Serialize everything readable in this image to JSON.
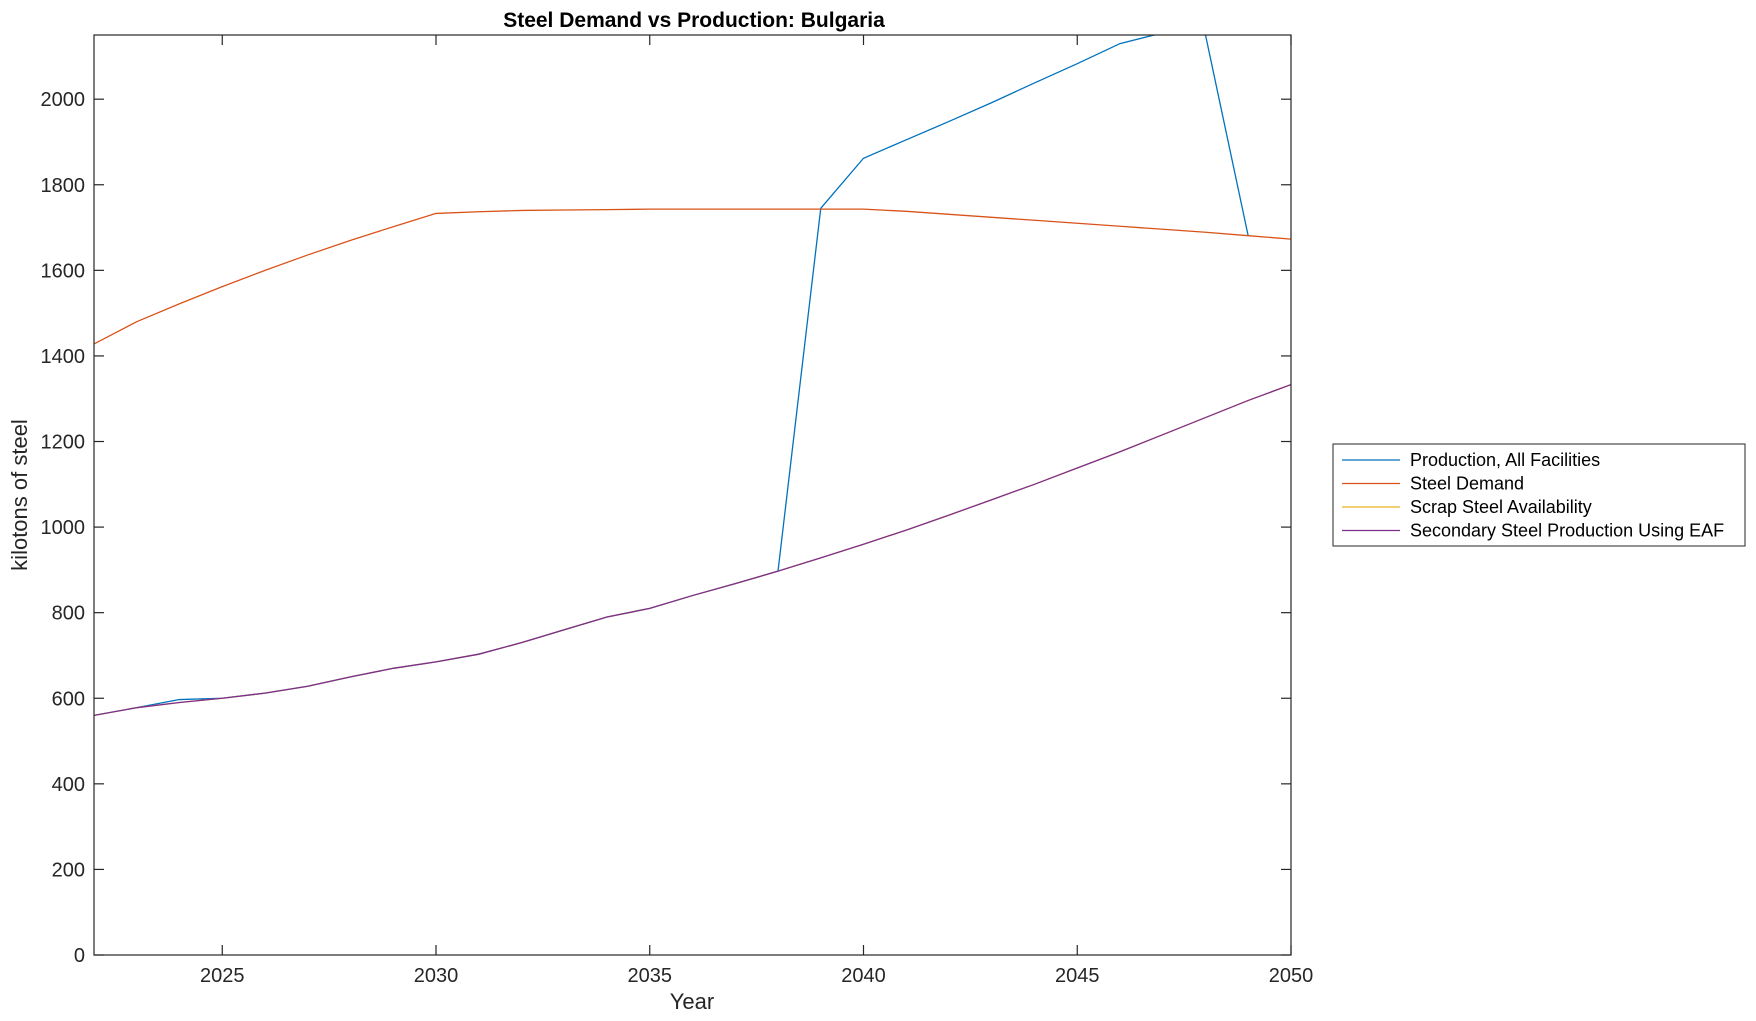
{
  "chart_data": {
    "type": "line",
    "title": "Steel Demand vs Production: Bulgaria",
    "xlabel": "Year",
    "ylabel": "kilotons of steel",
    "xlim": [
      2022,
      2050
    ],
    "ylim": [
      0,
      2150
    ],
    "xticks": [
      2025,
      2030,
      2035,
      2040,
      2045,
      2050
    ],
    "yticks": [
      0,
      200,
      400,
      600,
      800,
      1000,
      1200,
      1400,
      1600,
      1800,
      2000
    ],
    "grid": false,
    "legend_position": "right",
    "series": [
      {
        "name": "Production, All Facilities",
        "color": "#0072BD",
        "x": [
          2022,
          2023,
          2024,
          2025,
          2026,
          2027,
          2028,
          2029,
          2030,
          2031,
          2032,
          2033,
          2034,
          2035,
          2036,
          2037,
          2038,
          2039,
          2040,
          2041,
          2042,
          2043,
          2044,
          2045,
          2046,
          2047,
          2048,
          2049
        ],
        "values": [
          560,
          578,
          597,
          600,
          612,
          628,
          650,
          670,
          685,
          703,
          730,
          760,
          790,
          810,
          840,
          868,
          897,
          1745,
          1862,
          1905,
          1948,
          1992,
          2038,
          2083,
          2130,
          2155,
          2150,
          1680
        ]
      },
      {
        "name": "Steel Demand",
        "color": "#D95319",
        "x": [
          2022,
          2023,
          2024,
          2025,
          2026,
          2027,
          2028,
          2029,
          2030,
          2031,
          2032,
          2033,
          2034,
          2035,
          2036,
          2037,
          2038,
          2039,
          2040,
          2041,
          2042,
          2043,
          2044,
          2045,
          2046,
          2047,
          2048,
          2049,
          2050
        ],
        "values": [
          1428,
          1480,
          1522,
          1562,
          1600,
          1636,
          1670,
          1702,
          1733,
          1737,
          1740,
          1741,
          1742,
          1743,
          1743,
          1743,
          1743,
          1743,
          1743,
          1738,
          1731,
          1724,
          1717,
          1710,
          1703,
          1696,
          1689,
          1681,
          1673
        ]
      },
      {
        "name": "Scrap Steel Availability",
        "color": "#EDB120",
        "x": [
          2022,
          2023,
          2024,
          2025,
          2026,
          2027,
          2028,
          2029,
          2030,
          2031,
          2032,
          2033,
          2034,
          2035,
          2036,
          2037,
          2038,
          2039,
          2040,
          2041,
          2042,
          2043,
          2044,
          2045,
          2046,
          2047,
          2048,
          2049,
          2050
        ],
        "values": [
          560,
          578,
          590,
          600,
          612,
          628,
          650,
          670,
          685,
          703,
          730,
          760,
          790,
          810,
          840,
          868,
          897,
          928,
          960,
          993,
          1028,
          1064,
          1100,
          1138,
          1176,
          1216,
          1256,
          1296,
          1333
        ]
      },
      {
        "name": "Secondary Steel Production Using EAF",
        "color": "#7E2F8E",
        "x": [
          2022,
          2023,
          2024,
          2025,
          2026,
          2027,
          2028,
          2029,
          2030,
          2031,
          2032,
          2033,
          2034,
          2035,
          2036,
          2037,
          2038,
          2039,
          2040,
          2041,
          2042,
          2043,
          2044,
          2045,
          2046,
          2047,
          2048,
          2049,
          2050
        ],
        "values": [
          560,
          578,
          590,
          600,
          612,
          628,
          650,
          670,
          685,
          703,
          730,
          760,
          790,
          810,
          840,
          868,
          897,
          928,
          960,
          993,
          1028,
          1064,
          1100,
          1138,
          1176,
          1216,
          1256,
          1296,
          1333
        ]
      }
    ]
  }
}
